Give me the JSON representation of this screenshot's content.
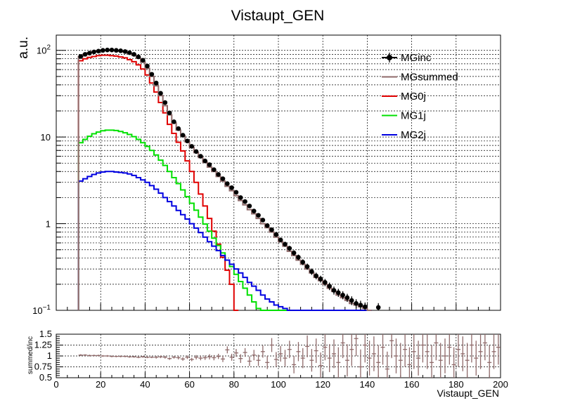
{
  "chart_data": [
    {
      "type": "line",
      "title": "Vistaupt_GEN",
      "ylabel": "a.u.",
      "xlim": [
        0,
        200
      ],
      "ylim": [
        0.1,
        150
      ],
      "yscale": "log",
      "grid": true,
      "legend_position": "top-right",
      "y_tick_labels": [
        {
          "v": 100,
          "base": "10",
          "exp": "2"
        },
        {
          "v": 10,
          "base": "10",
          "exp": ""
        },
        {
          "v": 1,
          "base": "1",
          "exp": ""
        },
        {
          "v": 0.1,
          "base": "10",
          "exp": "−1"
        }
      ],
      "series": [
        {
          "name": "MGinc",
          "color": "#000000",
          "style": "points-with-errors",
          "x": [
            11,
            13,
            15,
            17,
            19,
            21,
            23,
            25,
            27,
            29,
            31,
            33,
            35,
            37,
            39,
            41,
            43,
            45,
            47,
            49,
            51,
            53,
            55,
            57,
            59,
            61,
            63,
            65,
            67,
            69,
            71,
            73,
            75,
            77,
            79,
            81,
            83,
            85,
            87,
            89,
            91,
            93,
            95,
            97,
            99,
            101,
            103,
            105,
            107,
            109,
            111,
            113,
            115,
            117,
            119,
            121,
            123,
            125,
            127,
            129,
            131,
            133,
            135,
            137,
            139,
            145
          ],
          "y": [
            85,
            90,
            93,
            96,
            98,
            100,
            101,
            101,
            100,
            99,
            97,
            94,
            90,
            84,
            77,
            66,
            53,
            42,
            32,
            25,
            19,
            15,
            12.5,
            10.5,
            9,
            7.8,
            6.8,
            6,
            5.3,
            4.8,
            4.2,
            3.7,
            3.3,
            2.9,
            2.6,
            2.3,
            2.0,
            1.8,
            1.6,
            1.4,
            1.25,
            1.1,
            0.95,
            0.85,
            0.75,
            0.65,
            0.58,
            0.52,
            0.46,
            0.41,
            0.36,
            0.32,
            0.28,
            0.25,
            0.23,
            0.21,
            0.19,
            0.17,
            0.16,
            0.15,
            0.14,
            0.13,
            0.12,
            0.115,
            0.11,
            0.108
          ],
          "err": [
            2,
            2,
            2,
            2,
            2,
            2,
            2,
            2,
            2,
            2,
            2,
            2,
            2,
            2,
            2,
            2,
            1.5,
            1.2,
            1,
            0.8,
            0.6,
            0.5,
            0.4,
            0.35,
            0.3,
            0.28,
            0.25,
            0.22,
            0.2,
            0.18,
            0.17,
            0.15,
            0.14,
            0.12,
            0.11,
            0.1,
            0.09,
            0.08,
            0.075,
            0.07,
            0.065,
            0.06,
            0.055,
            0.05,
            0.045,
            0.04,
            0.038,
            0.035,
            0.033,
            0.03,
            0.028,
            0.026,
            0.024,
            0.022,
            0.021,
            0.02,
            0.019,
            0.018,
            0.017,
            0.016,
            0.015,
            0.015,
            0.014,
            0.014,
            0.013,
            0.013
          ]
        },
        {
          "name": "MGsummed",
          "color": "#8f6a6a",
          "style": "step",
          "x": [
            10,
            12,
            14,
            16,
            18,
            20,
            22,
            24,
            26,
            28,
            30,
            32,
            34,
            36,
            38,
            40,
            42,
            44,
            46,
            48,
            50,
            52,
            54,
            56,
            58,
            60,
            62,
            64,
            66,
            68,
            70,
            72,
            74,
            76,
            78,
            80,
            82,
            84,
            86,
            88,
            90,
            92,
            94,
            96,
            98,
            100,
            102,
            104,
            106,
            108,
            110,
            112,
            114,
            116,
            118,
            120,
            122,
            124,
            126,
            128,
            130,
            132,
            134,
            136,
            138,
            140
          ],
          "y": [
            85,
            90,
            94,
            97,
            99,
            100,
            100,
            100,
            99,
            98,
            96,
            92,
            88,
            81,
            73,
            62,
            50,
            39,
            30,
            23,
            18,
            14.5,
            12,
            10.3,
            8.8,
            7.6,
            6.6,
            5.8,
            5.1,
            4.5,
            4.0,
            3.5,
            3.1,
            2.7,
            2.4,
            2.1,
            1.85,
            1.65,
            1.45,
            1.3,
            1.15,
            1.0,
            0.9,
            0.8,
            0.7,
            0.62,
            0.55,
            0.48,
            0.43,
            0.38,
            0.34,
            0.3,
            0.27,
            0.24,
            0.22,
            0.2,
            0.18,
            0.165,
            0.15,
            0.14,
            0.13,
            0.12,
            0.115,
            0.11,
            0.105,
            0.1
          ]
        },
        {
          "name": "MG0j",
          "color": "#e00000",
          "style": "step",
          "x": [
            10,
            12,
            14,
            16,
            18,
            20,
            22,
            24,
            26,
            28,
            30,
            32,
            34,
            36,
            38,
            40,
            42,
            44,
            46,
            48,
            50,
            52,
            54,
            56,
            58,
            60,
            62,
            64,
            66,
            68,
            70,
            72,
            74,
            76,
            78,
            80
          ],
          "y": [
            76,
            80,
            83,
            85,
            87,
            88,
            88,
            87,
            86,
            84,
            82,
            78,
            74,
            68,
            61,
            52,
            42,
            33,
            25,
            19,
            14,
            11,
            8.7,
            6.9,
            5.3,
            4.0,
            3.0,
            2.2,
            1.6,
            1.15,
            0.82,
            0.58,
            0.41,
            0.29,
            0.2,
            0.1
          ]
        },
        {
          "name": "MG1j",
          "color": "#00e000",
          "style": "step",
          "x": [
            10,
            12,
            14,
            16,
            18,
            20,
            22,
            24,
            26,
            28,
            30,
            32,
            34,
            36,
            38,
            40,
            42,
            44,
            46,
            48,
            50,
            52,
            54,
            56,
            58,
            60,
            62,
            64,
            66,
            68,
            70,
            72,
            74,
            76,
            78,
            80,
            82,
            84,
            86,
            88,
            90,
            92,
            94,
            96,
            98,
            100,
            102,
            104,
            106,
            108,
            110,
            112,
            114,
            116,
            118,
            120
          ],
          "y": [
            8.6,
            9.4,
            10.2,
            10.9,
            11.4,
            11.8,
            12.0,
            12.0,
            11.9,
            11.6,
            11.2,
            10.7,
            10.1,
            9.4,
            8.6,
            7.8,
            7.0,
            6.2,
            5.4,
            4.7,
            4.0,
            3.4,
            2.9,
            2.45,
            2.05,
            1.72,
            1.43,
            1.19,
            0.99,
            0.82,
            0.68,
            0.56,
            0.46,
            0.38,
            0.32,
            0.26,
            0.215,
            0.18,
            0.15,
            0.125,
            0.105,
            0.1,
            0.1,
            0.1,
            0.1,
            0.1,
            0.1,
            0.1,
            0.1,
            0.1,
            0.1,
            0.1,
            0.1,
            0.1,
            0.1,
            0.1
          ]
        },
        {
          "name": "MG2j",
          "color": "#0000e0",
          "style": "step",
          "x": [
            10,
            12,
            14,
            16,
            18,
            20,
            22,
            24,
            26,
            28,
            30,
            32,
            34,
            36,
            38,
            40,
            42,
            44,
            46,
            48,
            50,
            52,
            54,
            56,
            58,
            60,
            62,
            64,
            66,
            68,
            70,
            72,
            74,
            76,
            78,
            80,
            82,
            84,
            86,
            88,
            90,
            92,
            94,
            96,
            98,
            100,
            102,
            104,
            106,
            108,
            110,
            112,
            114,
            116,
            118,
            120,
            122,
            124,
            126,
            128,
            130,
            132,
            134,
            136,
            138,
            140
          ],
          "y": [
            3.1,
            3.3,
            3.5,
            3.7,
            3.85,
            3.95,
            4.0,
            4.0,
            3.95,
            3.9,
            3.85,
            3.75,
            3.6,
            3.4,
            3.2,
            3.0,
            2.75,
            2.5,
            2.25,
            2.0,
            1.8,
            1.6,
            1.42,
            1.27,
            1.13,
            1.0,
            0.89,
            0.79,
            0.7,
            0.62,
            0.55,
            0.49,
            0.43,
            0.38,
            0.34,
            0.3,
            0.27,
            0.24,
            0.21,
            0.19,
            0.17,
            0.15,
            0.135,
            0.125,
            0.115,
            0.11,
            0.105,
            0.1,
            0.1,
            0.1,
            0.1,
            0.1,
            0.1,
            0.1,
            0.1,
            0.1,
            0.1,
            0.1,
            0.1,
            0.1,
            0.1,
            0.1,
            0.1,
            0.1,
            0.1,
            0.1
          ]
        }
      ]
    },
    {
      "type": "scatter",
      "xlabel": "Vistaupt_GEN",
      "ylabel": "summed/inc",
      "xlim": [
        0,
        200
      ],
      "ylim": [
        0.5,
        1.5
      ],
      "grid": true,
      "x_tick_labels": [
        "0",
        "20",
        "40",
        "60",
        "80",
        "100",
        "120",
        "140",
        "160",
        "180",
        "200"
      ],
      "y_tick_labels": [
        "0.5",
        "0.75",
        "1",
        "1.25",
        "1.5"
      ],
      "series": [
        {
          "name": "",
          "color": "#8f6a6a",
          "style": "points-with-errors",
          "x": [
            11,
            13,
            15,
            17,
            19,
            21,
            23,
            25,
            27,
            29,
            31,
            33,
            35,
            37,
            39,
            41,
            43,
            45,
            47,
            49,
            51,
            53,
            55,
            57,
            59,
            61,
            63,
            65,
            67,
            69,
            71,
            73,
            75,
            77,
            79,
            81,
            83,
            85,
            87,
            89,
            91,
            93,
            95,
            97,
            99,
            101,
            103,
            105,
            107,
            109,
            111,
            113,
            115,
            117,
            119,
            121,
            123,
            125,
            127,
            129,
            131,
            133,
            135,
            137,
            139,
            141,
            143,
            145,
            147,
            149,
            151,
            153,
            155,
            157,
            159,
            161,
            163,
            165,
            167,
            169,
            171,
            173,
            175,
            177,
            179,
            181,
            183,
            185,
            187,
            189,
            191,
            193,
            195,
            197,
            199
          ],
          "y": [
            1.02,
            1.02,
            1.01,
            1.01,
            1.01,
            1.0,
            1.0,
            0.99,
            0.99,
            0.99,
            0.99,
            0.98,
            0.98,
            0.97,
            0.98,
            0.97,
            0.97,
            0.97,
            0.98,
            0.97,
            0.94,
            0.97,
            0.96,
            0.93,
            0.97,
            0.92,
            0.97,
            0.95,
            0.96,
            0.98,
            0.96,
            0.99,
            0.93,
            1.14,
            0.97,
            1.07,
            0.94,
            1.08,
            0.88,
            1.02,
            0.9,
            1.1,
            0.85,
            1.25,
            0.92,
            1.05,
            0.95,
            1.15,
            0.8,
            1.1,
            0.95,
            1.22,
            0.9,
            1.12,
            0.78,
            1.2,
            0.95,
            1.05,
            0.85,
            1.3,
            0.9,
            1.15,
            1.4,
            0.75,
            1.25,
            0.95,
            1.05,
            0.85,
            1.2,
            0.7,
            1.35,
            1.0,
            0.9,
            1.15,
            0.8,
            1.1,
            0.95,
            1.25,
            1.1,
            0.85,
            1.3,
            0.9,
            1.0,
            1.2,
            0.8,
            1.15,
            1.05,
            0.9,
            1.25,
            0.95,
            1.1,
            1.3,
            0.85,
            1.1,
            1.2
          ],
          "err": [
            0.02,
            0.02,
            0.02,
            0.02,
            0.02,
            0.02,
            0.02,
            0.02,
            0.02,
            0.02,
            0.02,
            0.02,
            0.02,
            0.02,
            0.02,
            0.02,
            0.02,
            0.03,
            0.03,
            0.03,
            0.03,
            0.03,
            0.04,
            0.04,
            0.04,
            0.04,
            0.05,
            0.05,
            0.05,
            0.06,
            0.06,
            0.06,
            0.07,
            0.08,
            0.08,
            0.09,
            0.1,
            0.1,
            0.11,
            0.12,
            0.13,
            0.14,
            0.15,
            0.16,
            0.17,
            0.18,
            0.19,
            0.2,
            0.2,
            0.22,
            0.23,
            0.25,
            0.26,
            0.28,
            0.3,
            0.3,
            0.32,
            0.33,
            0.35,
            0.35,
            0.37,
            0.38,
            0.4,
            0.4,
            0.4,
            0.4,
            0.4,
            0.4,
            0.4,
            0.4,
            0.4,
            0.4,
            0.4,
            0.4,
            0.4,
            0.4,
            0.4,
            0.4,
            0.4,
            0.4,
            0.4,
            0.4,
            0.4,
            0.4,
            0.4,
            0.4,
            0.4,
            0.4,
            0.4,
            0.4,
            0.4,
            0.4,
            0.4,
            0.4,
            0.4
          ]
        }
      ]
    }
  ]
}
